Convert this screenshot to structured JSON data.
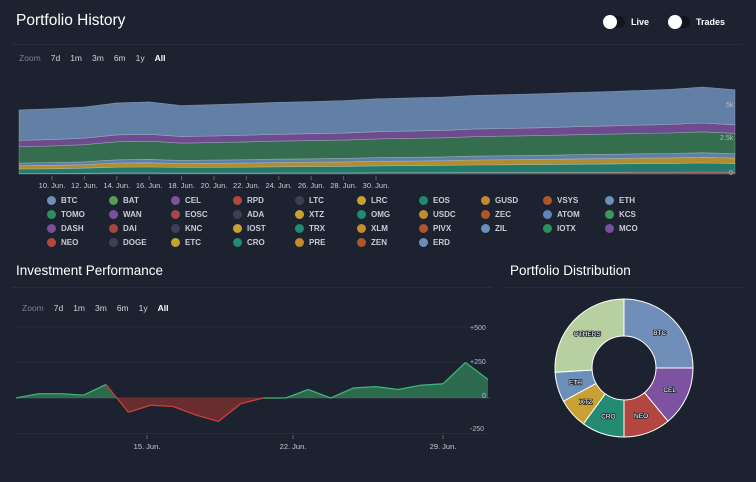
{
  "history": {
    "title": "Portfolio History",
    "toggles": [
      {
        "label": "Live"
      },
      {
        "label": "Trades"
      }
    ],
    "zoom": {
      "label": "Zoom",
      "options": [
        "7d",
        "1m",
        "3m",
        "6m",
        "1y",
        "All"
      ],
      "active": "All"
    },
    "x_ticks": [
      "10. Jun.",
      "12. Jun.",
      "14. Jun.",
      "16. Jun.",
      "18. Jun.",
      "20. Jun.",
      "22. Jun.",
      "24. Jun.",
      "26. Jun.",
      "28. Jun.",
      "30. Jun."
    ],
    "y_ticks": [
      "5k",
      "2.5k",
      "0"
    ]
  },
  "legend": [
    {
      "name": "BTC",
      "color": "#6f8fba"
    },
    {
      "name": "BAT",
      "color": "#5a9a57"
    },
    {
      "name": "CEL",
      "color": "#7d52a0"
    },
    {
      "name": "RPD",
      "color": "#b3473f"
    },
    {
      "name": "LTC",
      "color": "#3a4252"
    },
    {
      "name": "LRC",
      "color": "#c9a132"
    },
    {
      "name": "EOS",
      "color": "#1f8a6e"
    },
    {
      "name": "GUSD",
      "color": "#c58a2a"
    },
    {
      "name": "VSYS",
      "color": "#b0542a"
    },
    {
      "name": "ETH",
      "color": "#6c8fba"
    },
    {
      "name": "TOMO",
      "color": "#2f8f5a"
    },
    {
      "name": "WAN",
      "color": "#7b4f9d"
    },
    {
      "name": "EOSC",
      "color": "#a8463e"
    },
    {
      "name": "ADA",
      "color": "#3a4252"
    },
    {
      "name": "XTZ",
      "color": "#c9a132"
    },
    {
      "name": "OMG",
      "color": "#238a74"
    },
    {
      "name": "USDC",
      "color": "#c58a2a"
    },
    {
      "name": "ZEC",
      "color": "#b0542a"
    },
    {
      "name": "ATOM",
      "color": "#5f87b5"
    },
    {
      "name": "KCS",
      "color": "#3a9a5a"
    },
    {
      "name": "DASH",
      "color": "#7b4f9d"
    },
    {
      "name": "DAI",
      "color": "#a8463e"
    },
    {
      "name": "KNC",
      "color": "#3a4252"
    },
    {
      "name": "IOST",
      "color": "#c9a132"
    },
    {
      "name": "TRX",
      "color": "#238a74"
    },
    {
      "name": "XLM",
      "color": "#c58a2a"
    },
    {
      "name": "PIVX",
      "color": "#b0542a"
    },
    {
      "name": "ZIL",
      "color": "#6c8fba"
    },
    {
      "name": "IOTX",
      "color": "#2f8f5a"
    },
    {
      "name": "MCO",
      "color": "#7b4f9d"
    },
    {
      "name": "NEO",
      "color": "#b3473f"
    },
    {
      "name": "DOGE",
      "color": "#3a4252"
    },
    {
      "name": "ETC",
      "color": "#c9a132"
    },
    {
      "name": "CRO",
      "color": "#238a74"
    },
    {
      "name": "PRE",
      "color": "#c58a2a"
    },
    {
      "name": "ZEN",
      "color": "#b0542a"
    },
    {
      "name": "ERD",
      "color": "#6c8fba"
    }
  ],
  "performance": {
    "title": "Investment Performance",
    "zoom": {
      "label": "Zoom",
      "options": [
        "7d",
        "1m",
        "3m",
        "6m",
        "1y",
        "All"
      ],
      "active": "All"
    },
    "x_ticks": [
      "15. Jun.",
      "22. Jun.",
      "29. Jun."
    ],
    "y_ticks": [
      "+500",
      "+250",
      "0",
      "-250"
    ]
  },
  "distribution": {
    "title": "Portfolio Distribution"
  },
  "chart_data": [
    {
      "type": "area",
      "title": "Portfolio History",
      "x": [
        "9. Jun.",
        "10. Jun.",
        "11. Jun.",
        "12. Jun.",
        "13. Jun.",
        "14. Jun.",
        "15. Jun.",
        "16. Jun.",
        "17. Jun.",
        "18. Jun.",
        "19. Jun.",
        "20. Jun.",
        "21. Jun.",
        "22. Jun.",
        "23. Jun.",
        "24. Jun.",
        "25. Jun.",
        "26. Jun.",
        "27. Jun.",
        "28. Jun.",
        "29. Jun.",
        "30. Jun.",
        "1. Jul."
      ],
      "stacked": true,
      "ylim": [
        0,
        6000
      ],
      "series": [
        {
          "name": "NEO",
          "color": "#b3473f",
          "values": [
            30,
            30,
            40,
            60,
            60,
            50,
            50,
            50,
            60,
            60,
            60,
            70,
            70,
            70,
            80,
            80,
            80,
            90,
            90,
            100,
            100,
            110,
            100
          ]
        },
        {
          "name": "CRO",
          "color": "#238a74",
          "values": [
            250,
            260,
            280,
            320,
            330,
            310,
            320,
            330,
            340,
            350,
            360,
            380,
            390,
            400,
            420,
            430,
            440,
            450,
            460,
            470,
            480,
            500,
            480
          ]
        },
        {
          "name": "XTZ",
          "color": "#c9a132",
          "values": [
            180,
            190,
            200,
            230,
            235,
            220,
            225,
            230,
            240,
            245,
            250,
            260,
            265,
            270,
            280,
            285,
            290,
            300,
            305,
            310,
            315,
            325,
            310
          ]
        },
        {
          "name": "ETH",
          "color": "#6c8fba",
          "values": [
            150,
            155,
            160,
            180,
            185,
            175,
            178,
            182,
            186,
            190,
            195,
            200,
            205,
            210,
            215,
            220,
            225,
            230,
            235,
            240,
            245,
            250,
            240
          ]
        },
        {
          "name": "OTHERS",
          "color": "#3a7a55",
          "values": [
            900,
            920,
            950,
            1000,
            1010,
            960,
            970,
            990,
            1000,
            1010,
            1020,
            1040,
            1050,
            1060,
            1080,
            1090,
            1100,
            1110,
            1120,
            1130,
            1140,
            1160,
            1130
          ]
        },
        {
          "name": "CEL",
          "color": "#7d52a0",
          "values": [
            350,
            355,
            360,
            380,
            385,
            365,
            370,
            375,
            380,
            385,
            390,
            400,
            405,
            410,
            420,
            425,
            430,
            440,
            450,
            460,
            470,
            490,
            470
          ]
        },
        {
          "name": "BTC",
          "color": "#6f8fba",
          "values": [
            1700,
            1710,
            1730,
            1780,
            1800,
            1720,
            1740,
            1760,
            1780,
            1790,
            1800,
            1830,
            1840,
            1850,
            1870,
            1880,
            1890,
            1900,
            1910,
            1930,
            1950,
            2000,
            1950
          ]
        }
      ]
    },
    {
      "type": "area",
      "title": "Investment Performance",
      "x": [
        "10. Jun.",
        "11. Jun.",
        "12. Jun.",
        "13. Jun.",
        "14. Jun.",
        "15. Jun.",
        "16. Jun.",
        "17. Jun.",
        "18. Jun.",
        "19. Jun.",
        "20. Jun.",
        "21. Jun.",
        "22. Jun.",
        "23. Jun.",
        "24. Jun.",
        "25. Jun.",
        "26. Jun.",
        "27. Jun.",
        "28. Jun.",
        "29. Jun.",
        "30. Jun.",
        "1. Jul."
      ],
      "values": [
        0,
        30,
        30,
        20,
        95,
        -100,
        -50,
        -60,
        -120,
        -165,
        -40,
        0,
        0,
        60,
        0,
        70,
        80,
        60,
        90,
        100,
        250,
        130
      ],
      "ylim": [
        -250,
        500
      ],
      "color_positive": "#2f7d55",
      "color_negative": "#7d3030"
    },
    {
      "type": "pie",
      "title": "Portfolio Distribution",
      "donut": true,
      "slices": [
        {
          "label": "BTC",
          "value": 25.0,
          "color": "#6f8fba"
        },
        {
          "label": "CEL",
          "value": 14.0,
          "color": "#7d52a0"
        },
        {
          "label": "NEO",
          "value": 11.0,
          "color": "#b3473f"
        },
        {
          "label": "CRO",
          "value": 10.0,
          "color": "#238a74"
        },
        {
          "label": "XTZ",
          "value": 7.0,
          "color": "#c9a132"
        },
        {
          "label": "ETH",
          "value": 7.0,
          "color": "#6c8fba"
        },
        {
          "label": "OTHERS",
          "value": 26.0,
          "color": "#b8d0a0"
        }
      ]
    }
  ]
}
